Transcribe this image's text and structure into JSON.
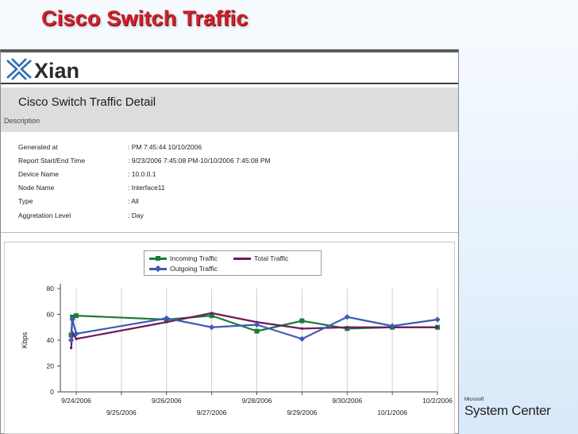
{
  "slide": {
    "title": "Cisco Switch Traffic"
  },
  "report": {
    "logo_text": "Xian",
    "title": "Cisco Switch Traffic Detail",
    "description_label": "Description",
    "meta": [
      {
        "label": "Generated at",
        "value": ": PM 7:45:44 10/10/2006"
      },
      {
        "label": "Report Start/End Time",
        "value": ": 9/23/2006 7:45:08 PM-10/10/2006 7:45:08 PM"
      },
      {
        "label": "Device Name",
        "value": ": 10.0.0.1"
      },
      {
        "label": "Node Name",
        "value": ": Interface11"
      },
      {
        "label": "Type",
        "value": ": All"
      },
      {
        "label": "Aggretation Level",
        "value": ": Day"
      }
    ]
  },
  "legend": {
    "incoming": "Incoming Traffic",
    "total": "Total Traffic",
    "outgoing": "Outgoing Traffic"
  },
  "chart_data": {
    "type": "line",
    "ylabel": "Kbps",
    "ylim": [
      0,
      80
    ],
    "yticks": [
      0,
      20,
      40,
      60,
      80
    ],
    "x_ticks_upper": [
      "9/24/2006",
      "9/26/2006",
      "9/28/2006",
      "9/30/2006",
      "10/2/2006"
    ],
    "x_ticks_lower": [
      "9/25/2006",
      "9/27/2006",
      "9/29/2006",
      "10/1/2006"
    ],
    "x_tick_order": [
      "9/24/2006",
      "9/25/2006",
      "9/26/2006",
      "9/27/2006",
      "9/28/2006",
      "9/29/2006",
      "9/30/2006",
      "10/1/2006",
      "10/2/2006"
    ],
    "legend_position": "top",
    "series": [
      {
        "name": "Incoming Traffic",
        "color": "#1d7a3a",
        "marker": "square",
        "points": [
          [
            -0.8,
            44
          ],
          [
            -0.6,
            58
          ],
          [
            1.0,
            59
          ],
          [
            3.0,
            56
          ],
          [
            4.0,
            59
          ],
          [
            5.0,
            47
          ],
          [
            6.0,
            55
          ],
          [
            7.0,
            49
          ],
          [
            8.0,
            50
          ],
          [
            9.0,
            50
          ]
        ]
      },
      {
        "name": "Total Traffic",
        "color": "#6b1c5c",
        "marker": "none",
        "points": [
          [
            -0.8,
            34
          ],
          [
            -0.6,
            46
          ],
          [
            1.0,
            41
          ],
          [
            3.0,
            54
          ],
          [
            4.0,
            61
          ],
          [
            5.0,
            54
          ],
          [
            6.0,
            49
          ],
          [
            7.0,
            50
          ],
          [
            8.0,
            50
          ],
          [
            9.0,
            50
          ]
        ]
      },
      {
        "name": "Outgoing Traffic",
        "color": "#3f5bb5",
        "marker": "diamond",
        "points": [
          [
            -0.8,
            40
          ],
          [
            -0.6,
            56
          ],
          [
            1.0,
            45
          ],
          [
            3.0,
            57
          ],
          [
            4.0,
            50
          ],
          [
            5.0,
            52
          ],
          [
            6.0,
            41
          ],
          [
            7.0,
            58
          ],
          [
            8.0,
            51
          ],
          [
            9.0,
            56
          ]
        ]
      }
    ]
  },
  "brand": {
    "small": "Microsoft",
    "big": "System Center"
  },
  "colors": {
    "title_red": "#d0202a",
    "band_gray": "#dddddd"
  }
}
